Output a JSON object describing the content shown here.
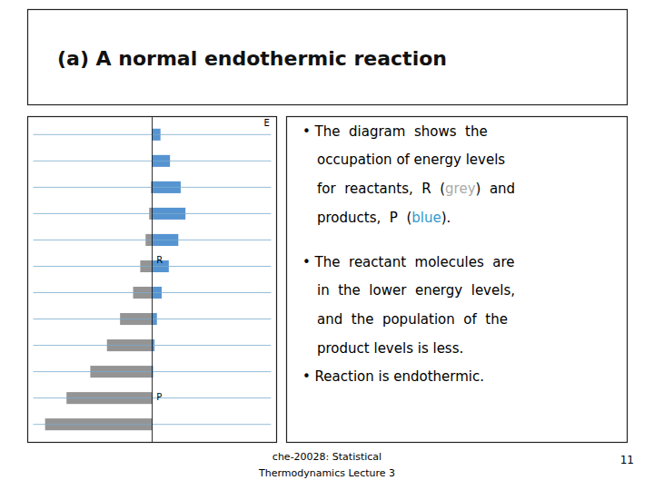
{
  "chart_data": {
    "type": "bar",
    "orientation": "horizontal",
    "title": "(a) A normal endothermic reaction",
    "categories": [
      null,
      null,
      null,
      null,
      null,
      null,
      null,
      null,
      null,
      null,
      null,
      null
    ],
    "series": [
      {
        "name": "R",
        "color": "#888888",
        "values": [
          -0.9,
          -0.72,
          -0.52,
          -0.38,
          -0.27,
          -0.16,
          -0.1,
          -0.055,
          -0.025,
          -0.01,
          -0.004,
          -0.001
        ]
      },
      {
        "name": "P",
        "color": "#4488cc",
        "values": [
          0.001,
          0.003,
          0.008,
          0.02,
          0.04,
          0.08,
          0.14,
          0.22,
          0.28,
          0.24,
          0.15,
          0.07
        ]
      }
    ],
    "xlim": [
      -1.05,
      1.05
    ],
    "tick_labels": false,
    "grid": true,
    "annotations": [
      "E"
    ]
  },
  "text_panel": [
    [
      [
        {
          "text": "• The  diagram  shows  the",
          "color": "black"
        }
      ],
      [
        {
          "text": "occupation of energy levels",
          "color": "black"
        }
      ],
      [
        {
          "text": "for  reactants,  R  (",
          "color": "black"
        },
        {
          "text": "grey",
          "color": "#aaaaaa"
        },
        {
          "text": ")  and",
          "color": "black"
        }
      ],
      [
        {
          "text": "products,  P  (",
          "color": "black"
        },
        {
          "text": "blue",
          "color": "#3399cc"
        },
        {
          "text": ").",
          "color": "black"
        }
      ]
    ],
    [
      [
        {
          "text": "• The  reactant  molecules  are",
          "color": "black"
        }
      ],
      [
        {
          "text": "in  the  lower  energy  levels,",
          "color": "black"
        }
      ],
      [
        {
          "text": "and  the  population  of  the",
          "color": "black"
        }
      ],
      [
        {
          "text": "product levels is less.",
          "color": "black"
        }
      ]
    ],
    [
      [
        {
          "text": "• Reaction is endothermic.",
          "color": "black"
        }
      ]
    ]
  ],
  "footer": [
    "che-20028: Statistical",
    "Thermodynamics Lecture 3"
  ],
  "page": "11"
}
